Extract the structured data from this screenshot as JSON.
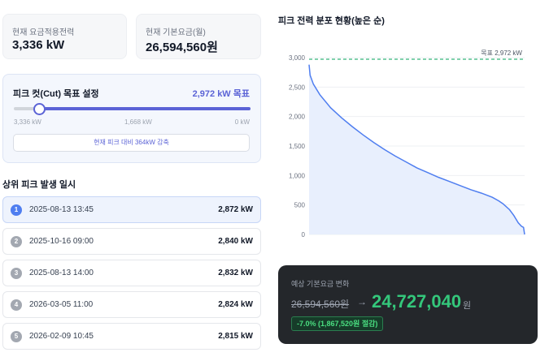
{
  "stats": {
    "current_power": {
      "label": "현재 요금적용전력",
      "value": "3,336 kW"
    },
    "base_fee": {
      "label": "현재 기본요금(월)",
      "value": "26,594,560원"
    }
  },
  "peak_cut": {
    "title": "피크 컷(Cut) 목표 설정",
    "target_label": "2,972 kW 목표",
    "slider": {
      "max_kw": 3336,
      "value_kw": 2972,
      "min_kw": 0
    },
    "ticks": [
      "3,336 kW",
      "1,668 kW",
      "0 kW"
    ],
    "reduction_text": "현재 피크 대비 364kW 감축"
  },
  "top_peaks": {
    "title": "상위 피크 발생 일시",
    "rows": [
      {
        "rank": "1",
        "datetime": "2025-08-13 13:45",
        "value": "2,872 kW"
      },
      {
        "rank": "2",
        "datetime": "2025-10-16 09:00",
        "value": "2,840 kW"
      },
      {
        "rank": "3",
        "datetime": "2025-08-13 14:00",
        "value": "2,832 kW"
      },
      {
        "rank": "4",
        "datetime": "2026-03-05 11:00",
        "value": "2,824 kW"
      },
      {
        "rank": "5",
        "datetime": "2026-02-09 10:45",
        "value": "2,815 kW"
      }
    ]
  },
  "chart_title": "피크 전력 분포 현황(높은 순)",
  "chart_data": {
    "type": "area",
    "title": "피크 전력 분포 현황(높은 순)",
    "xlabel": "",
    "ylabel": "",
    "ylim": [
      0,
      3000
    ],
    "yticks": [
      3000,
      2500,
      2000,
      1500,
      1000,
      500,
      0
    ],
    "ytick_labels": [
      "3,000",
      "2,500",
      "2,000",
      "1,500",
      "1,000",
      "500",
      "0"
    ],
    "target_line": {
      "value": 2972,
      "label": "목표 2,972 kW"
    },
    "x": [
      0,
      0.005,
      0.02,
      0.05,
      0.1,
      0.15,
      0.2,
      0.25,
      0.3,
      0.35,
      0.4,
      0.45,
      0.5,
      0.55,
      0.6,
      0.65,
      0.7,
      0.75,
      0.8,
      0.85,
      0.88,
      0.9,
      0.93,
      0.95,
      0.97,
      0.985,
      0.995,
      1.0
    ],
    "values": [
      2880,
      2700,
      2550,
      2370,
      2150,
      1980,
      1830,
      1690,
      1560,
      1440,
      1330,
      1230,
      1130,
      1050,
      970,
      900,
      830,
      760,
      700,
      630,
      570,
      520,
      420,
      320,
      200,
      140,
      120,
      0
    ],
    "colors": {
      "line": "#4f7ef0",
      "fill": "#e8effd",
      "target": "#34b37a"
    }
  },
  "cost_change": {
    "label": "예상 기본요금 변화",
    "old_value": "26,594,560원",
    "arrow": "→",
    "new_value": "24,727,040",
    "unit": "원",
    "badge": "-7.0% (1,867,520원 절감)"
  },
  "colors": {
    "accent": "#5b63d6",
    "positive": "#34c77b",
    "dark_card": "#24272b"
  }
}
